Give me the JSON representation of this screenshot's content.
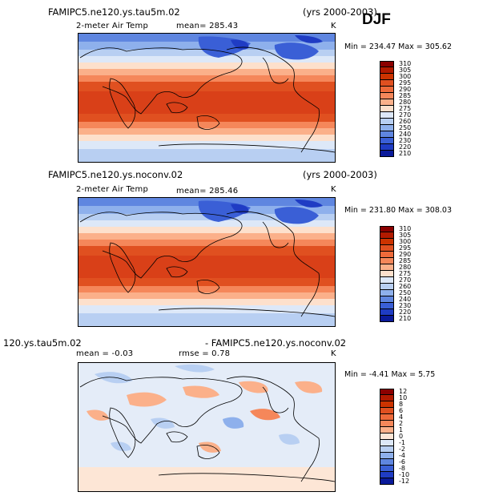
{
  "season": "DJF",
  "panels": [
    {
      "title": "FAMIPC5.ne120.ys.tau5m.02",
      "years": "(yrs 2000-2003)",
      "variable": "2-meter Air Temp",
      "stat": "mean= 285.43",
      "units": "K",
      "minmax": "Min = 234.47  Max = 305.62",
      "levels": [
        "310",
        "305",
        "300",
        "295",
        "290",
        "285",
        "280",
        "275",
        "270",
        "260",
        "250",
        "240",
        "230",
        "220",
        "210"
      ],
      "colors": [
        "#8b0000",
        "#b21a00",
        "#cc3300",
        "#e05020",
        "#ee6a3a",
        "#f5875a",
        "#fbb08a",
        "#fde0cc",
        "#dde8f8",
        "#b8cff2",
        "#8eb0ec",
        "#5f86e0",
        "#3a5fd6",
        "#1f3cc4",
        "#0a1a9a"
      ]
    },
    {
      "title": "FAMIPC5.ne120.ys.noconv.02",
      "years": "(yrs 2000-2003)",
      "variable": "2-meter Air Temp",
      "stat": "mean= 285.46",
      "units": "K",
      "minmax": "Min = 231.80  Max = 308.03",
      "levels": [
        "310",
        "305",
        "300",
        "295",
        "290",
        "285",
        "280",
        "275",
        "270",
        "260",
        "250",
        "240",
        "230",
        "220",
        "210"
      ],
      "colors": [
        "#8b0000",
        "#b21a00",
        "#cc3300",
        "#e05020",
        "#ee6a3a",
        "#f5875a",
        "#fbb08a",
        "#fde0cc",
        "#dde8f8",
        "#b8cff2",
        "#8eb0ec",
        "#5f86e0",
        "#3a5fd6",
        "#1f3cc4",
        "#0a1a9a"
      ]
    },
    {
      "title_left": "120.ys.tau5m.02",
      "title_right": "- FAMIPC5.ne120.ys.noconv.02",
      "stat": "mean =  -0.03",
      "rmse": "rmse =   0.78",
      "units": "K",
      "minmax": "Min =  -4.41  Max =   5.75",
      "levels": [
        "12",
        "10",
        "8",
        "6",
        "4",
        "2",
        "1",
        "0",
        "-1",
        "-2",
        "-4",
        "-6",
        "-8",
        "-10",
        "-12"
      ],
      "colors": [
        "#8b0000",
        "#b21a00",
        "#cc3300",
        "#e05020",
        "#ee6a3a",
        "#f5875a",
        "#fbb08a",
        "#fde6d6",
        "#dde8f8",
        "#b8cff2",
        "#8eb0ec",
        "#5f86e0",
        "#3a5fd6",
        "#1f3cc4",
        "#0a1a9a"
      ]
    }
  ]
}
